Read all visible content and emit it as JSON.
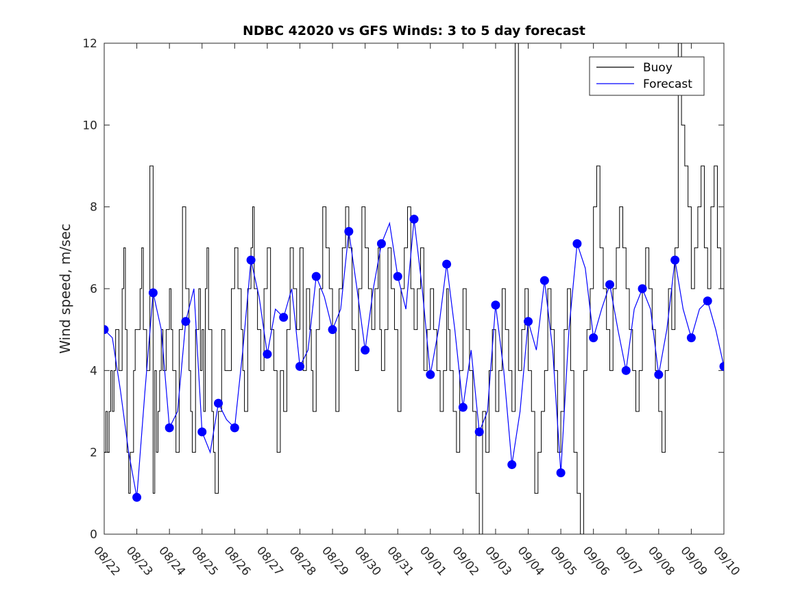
{
  "chart_data": {
    "type": "line",
    "title": "NDBC 42020 vs GFS Winds: 3 to 5 day forecast",
    "xlabel": "",
    "ylabel": "Wind speed, m/sec",
    "x_unit": "days since 08/22",
    "xlim": [
      0,
      19
    ],
    "ylim": [
      0,
      12
    ],
    "yticks": [
      0,
      2,
      4,
      6,
      8,
      10,
      12
    ],
    "xtick_labels": [
      "08/22",
      "08/23",
      "08/24",
      "08/25",
      "08/26",
      "08/27",
      "08/28",
      "08/29",
      "08/30",
      "08/31",
      "09/01",
      "09/02",
      "09/03",
      "09/04",
      "09/05",
      "09/06",
      "09/07",
      "09/08",
      "09/09",
      "09/10"
    ],
    "legend": {
      "position": "top-right",
      "entries": [
        {
          "label": "Buoy",
          "color": "#000000"
        },
        {
          "label": "Forecast",
          "color": "#0000ff"
        }
      ]
    },
    "colors": {
      "buoy": "#000000",
      "forecast": "#0000ff",
      "markers": "#0000ff"
    },
    "series": [
      {
        "name": "Buoy",
        "style": "step",
        "x": [
          0.0,
          0.05,
          0.1,
          0.15,
          0.2,
          0.25,
          0.3,
          0.35,
          0.45,
          0.55,
          0.6,
          0.65,
          0.7,
          0.75,
          0.8,
          0.9,
          0.95,
          1.0,
          1.1,
          1.15,
          1.2,
          1.3,
          1.4,
          1.5,
          1.55,
          1.6,
          1.65,
          1.7,
          1.75,
          1.8,
          1.9,
          2.0,
          2.05,
          2.1,
          2.2,
          2.3,
          2.4,
          2.5,
          2.6,
          2.65,
          2.7,
          2.8,
          2.9,
          2.95,
          3.0,
          3.05,
          3.1,
          3.15,
          3.2,
          3.3,
          3.35,
          3.4,
          3.5,
          3.6,
          3.7,
          3.8,
          3.9,
          4.0,
          4.1,
          4.2,
          4.25,
          4.3,
          4.4,
          4.5,
          4.55,
          4.6,
          4.7,
          4.8,
          4.9,
          5.0,
          5.1,
          5.2,
          5.3,
          5.4,
          5.5,
          5.6,
          5.7,
          5.8,
          5.9,
          6.0,
          6.1,
          6.2,
          6.3,
          6.35,
          6.4,
          6.5,
          6.6,
          6.7,
          6.8,
          6.9,
          7.0,
          7.1,
          7.2,
          7.3,
          7.4,
          7.5,
          7.6,
          7.7,
          7.8,
          7.9,
          8.0,
          8.1,
          8.2,
          8.3,
          8.4,
          8.45,
          8.5,
          8.6,
          8.7,
          8.8,
          8.9,
          9.0,
          9.1,
          9.2,
          9.3,
          9.4,
          9.5,
          9.6,
          9.7,
          9.8,
          9.9,
          10.0,
          10.1,
          10.2,
          10.3,
          10.4,
          10.5,
          10.55,
          10.6,
          10.7,
          10.8,
          10.9,
          11.0,
          11.1,
          11.2,
          11.3,
          11.4,
          11.5,
          11.6,
          11.7,
          11.8,
          11.9,
          12.0,
          12.1,
          12.2,
          12.3,
          12.4,
          12.5,
          12.6,
          12.7,
          12.8,
          12.9,
          13.0,
          13.1,
          13.2,
          13.3,
          13.4,
          13.5,
          13.6,
          13.7,
          13.8,
          13.9,
          14.0,
          14.1,
          14.2,
          14.3,
          14.4,
          14.5,
          14.6,
          14.7,
          14.8,
          14.9,
          15.0,
          15.1,
          15.2,
          15.3,
          15.4,
          15.5,
          15.6,
          15.7,
          15.8,
          15.9,
          16.0,
          16.1,
          16.2,
          16.3,
          16.4,
          16.5,
          16.6,
          16.7,
          16.8,
          16.9,
          17.0,
          17.1,
          17.2,
          17.3,
          17.4,
          17.5,
          17.6,
          17.7,
          17.8,
          17.9,
          18.0,
          18.1,
          18.2,
          18.3,
          18.4,
          18.5,
          18.6,
          18.7,
          18.8,
          18.9,
          19.0
        ],
        "values": [
          2,
          3,
          2,
          3,
          4,
          3,
          4,
          5,
          4,
          6,
          7,
          5,
          2,
          1,
          2,
          4,
          5,
          5,
          6,
          7,
          5,
          4,
          9,
          1,
          4,
          2,
          3,
          4,
          5,
          4,
          5,
          6,
          5,
          4,
          2,
          5,
          8,
          6,
          4,
          3,
          2,
          5,
          6,
          4,
          5,
          3,
          6,
          7,
          5,
          3,
          2,
          1,
          3,
          5,
          4,
          4,
          6,
          7,
          6,
          5,
          4,
          3,
          6,
          7,
          8,
          6,
          5,
          4,
          6,
          7,
          5,
          4,
          2,
          4,
          3,
          5,
          7,
          6,
          5,
          7,
          4,
          6,
          5,
          4,
          3,
          5,
          6,
          8,
          7,
          6,
          5,
          3,
          6,
          7,
          8,
          7,
          5,
          4,
          6,
          8,
          7,
          6,
          5,
          6,
          7,
          5,
          4,
          5,
          7,
          6,
          5,
          3,
          6,
          7,
          8,
          6,
          5,
          6,
          7,
          4,
          5,
          6,
          5,
          4,
          3,
          4,
          6,
          5,
          4,
          3,
          2,
          4,
          6,
          5,
          4,
          3,
          1,
          0,
          3,
          2,
          4,
          5,
          3,
          4,
          6,
          5,
          4,
          3,
          12,
          4,
          5,
          6,
          4,
          3,
          1,
          2,
          3,
          4,
          6,
          5,
          4,
          2,
          3,
          5,
          6,
          4,
          2,
          1,
          0,
          4,
          5,
          6,
          8,
          9,
          7,
          6,
          5,
          4,
          6,
          7,
          8,
          7,
          6,
          5,
          4,
          3,
          4,
          6,
          7,
          6,
          5,
          4,
          3,
          2,
          4,
          6,
          5,
          7,
          12,
          10,
          9,
          8,
          6,
          7,
          8,
          9,
          7,
          6,
          8,
          9,
          7,
          6,
          5
        ]
      },
      {
        "name": "Forecast",
        "style": "line",
        "x": [
          0.0,
          0.25,
          0.5,
          0.75,
          1.0,
          1.25,
          1.5,
          1.75,
          2.0,
          2.25,
          2.5,
          2.75,
          3.0,
          3.25,
          3.5,
          3.75,
          4.0,
          4.25,
          4.5,
          4.75,
          5.0,
          5.25,
          5.5,
          5.75,
          6.0,
          6.25,
          6.5,
          6.75,
          7.0,
          7.25,
          7.5,
          7.75,
          8.0,
          8.25,
          8.5,
          8.75,
          9.0,
          9.25,
          9.5,
          9.75,
          10.0,
          10.25,
          10.5,
          10.75,
          11.0,
          11.25,
          11.5,
          11.75,
          12.0,
          12.25,
          12.5,
          12.75,
          13.0,
          13.25,
          13.5,
          13.75,
          14.0,
          14.25,
          14.5,
          14.75,
          15.0,
          15.25,
          15.5,
          15.75,
          16.0,
          16.25,
          16.5,
          16.75,
          17.0,
          17.25,
          17.5,
          17.75,
          18.0,
          18.25,
          18.5,
          18.75,
          19.0
        ],
        "values": [
          5.0,
          4.8,
          3.5,
          2.0,
          0.9,
          3.5,
          5.9,
          5.0,
          2.6,
          3.0,
          5.2,
          6.0,
          2.5,
          2.0,
          3.2,
          2.8,
          2.6,
          4.5,
          6.7,
          5.8,
          4.4,
          5.5,
          5.3,
          6.0,
          4.1,
          4.5,
          6.3,
          5.8,
          5.0,
          5.5,
          7.4,
          6.0,
          4.5,
          6.0,
          7.1,
          7.6,
          6.3,
          5.5,
          7.7,
          6.0,
          3.9,
          5.0,
          6.6,
          5.0,
          3.1,
          4.5,
          2.5,
          3.0,
          5.6,
          4.0,
          1.7,
          3.0,
          5.2,
          4.5,
          6.2,
          4.5,
          1.5,
          5.0,
          7.1,
          6.5,
          4.8,
          5.5,
          6.1,
          5.0,
          4.0,
          5.5,
          6.0,
          5.5,
          3.9,
          5.0,
          6.7,
          5.5,
          4.8,
          5.5,
          5.7,
          5.0,
          4.1
        ]
      }
    ],
    "markers": {
      "x": [
        0.0,
        1.0,
        1.5,
        2.0,
        2.5,
        3.0,
        3.5,
        4.0,
        4.5,
        5.0,
        5.5,
        6.0,
        6.5,
        7.0,
        7.5,
        8.0,
        8.5,
        9.0,
        9.5,
        10.0,
        10.5,
        11.0,
        11.5,
        12.0,
        12.5,
        13.0,
        13.5,
        14.0,
        14.5,
        15.0,
        15.5,
        16.0,
        16.5,
        17.0,
        17.5,
        18.0,
        18.5,
        19.0
      ],
      "values": [
        5.0,
        0.9,
        5.9,
        2.6,
        5.2,
        2.5,
        3.2,
        2.6,
        6.7,
        4.4,
        5.3,
        4.1,
        6.3,
        5.0,
        7.4,
        4.5,
        7.1,
        6.3,
        7.7,
        3.9,
        6.6,
        3.1,
        2.5,
        5.6,
        1.7,
        5.2,
        6.2,
        1.5,
        7.1,
        4.8,
        6.1,
        4.0,
        6.0,
        3.9,
        6.7,
        4.8,
        5.7,
        4.1
      ]
    }
  }
}
